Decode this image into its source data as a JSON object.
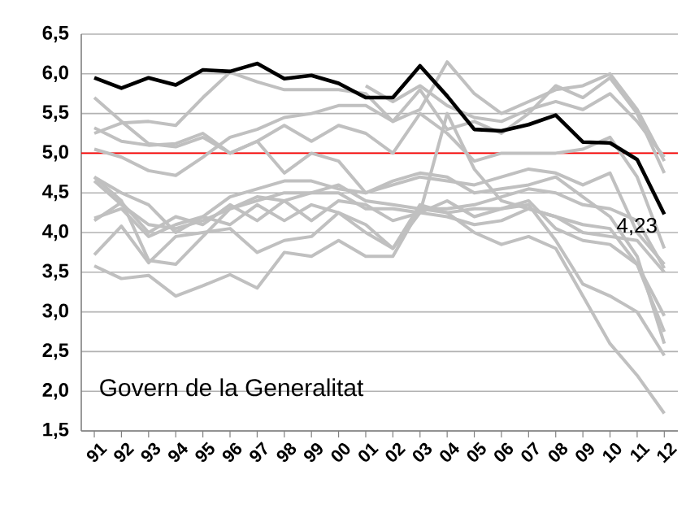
{
  "chart_data": {
    "type": "line",
    "categories": [
      "91",
      "92",
      "93",
      "94",
      "95",
      "96",
      "97",
      "98",
      "99",
      "00",
      "01",
      "02",
      "03",
      "04",
      "05",
      "06",
      "07",
      "08",
      "09",
      "10",
      "11",
      "12"
    ],
    "series": [
      {
        "color": "#c0c0c0",
        "values": [
          5.7,
          5.4,
          5.12,
          5.08,
          5.2,
          5.0,
          5.15,
          4.75,
          5.0,
          4.9,
          4.5,
          4.65,
          4.75,
          4.7,
          4.5,
          4.55,
          4.6,
          4.7,
          4.45,
          4.2,
          3.7,
          2.6
        ]
      },
      {
        "color": "#c0c0c0",
        "values": [
          5.32,
          5.15,
          5.1,
          5.12,
          5.25,
          5.0,
          5.15,
          5.35,
          5.15,
          5.35,
          5.25,
          5.0,
          5.5,
          5.25,
          4.9,
          5.0,
          5.0,
          5.0,
          5.05,
          5.2,
          4.7,
          3.8
        ]
      },
      {
        "color": "#c0c0c0",
        "values": [
          5.25,
          5.38,
          5.4,
          5.35,
          5.7,
          6.02,
          5.9,
          5.8,
          5.8,
          5.8,
          5.75,
          5.4,
          5.8,
          5.3,
          5.4,
          5.25,
          5.5,
          5.85,
          5.7,
          5.95,
          5.5,
          4.75
        ]
      },
      {
        "color": "#c0c0c0",
        "values": [
          5.05,
          4.95,
          4.78,
          4.72,
          4.95,
          5.2,
          5.3,
          5.45,
          5.5,
          5.6,
          5.6,
          5.4,
          5.55,
          6.15,
          5.75,
          5.5,
          5.65,
          5.8,
          5.85,
          6.0,
          5.55,
          4.9
        ]
      },
      {
        "color": "#c0c0c0",
        "values": [
          4.7,
          4.5,
          4.35,
          4.0,
          4.2,
          4.45,
          4.55,
          4.65,
          4.65,
          4.55,
          4.5,
          4.6,
          4.7,
          4.65,
          4.6,
          4.7,
          4.8,
          4.75,
          4.6,
          4.75,
          4.0,
          3.6
        ]
      },
      {
        "color": "#c0c0c0",
        "values": [
          4.65,
          4.35,
          4.1,
          4.05,
          4.15,
          4.3,
          4.4,
          4.5,
          4.5,
          4.6,
          4.4,
          4.35,
          4.3,
          4.3,
          4.35,
          4.45,
          4.55,
          4.5,
          4.35,
          4.3,
          4.15,
          3.55
        ]
      },
      {
        "color": "#c0c0c0",
        "values": [
          4.15,
          4.38,
          4.0,
          4.2,
          4.1,
          4.35,
          4.15,
          4.4,
          4.15,
          4.4,
          4.35,
          4.15,
          4.25,
          4.2,
          4.1,
          4.15,
          4.3,
          4.2,
          4.0,
          3.95,
          3.9,
          3.5
        ]
      },
      {
        "color": "#c0c0c0",
        "values": [
          4.18,
          4.3,
          3.95,
          4.1,
          4.2,
          4.1,
          4.35,
          4.15,
          4.35,
          4.25,
          4.1,
          3.8,
          4.35,
          4.25,
          4.3,
          4.3,
          4.4,
          4.05,
          3.9,
          3.85,
          3.6,
          2.95
        ]
      },
      {
        "color": "#c0c0c0",
        "values": [
          3.72,
          4.08,
          3.62,
          3.95,
          4.0,
          4.05,
          3.75,
          3.9,
          3.95,
          4.25,
          4.0,
          3.8,
          4.25,
          5.5,
          4.8,
          4.4,
          4.3,
          4.2,
          4.1,
          4.05,
          3.6,
          2.75
        ]
      },
      {
        "color": "#c0c0c0",
        "values": [
          3.58,
          3.42,
          3.46,
          3.2,
          3.33,
          3.47,
          3.3,
          3.75,
          3.7,
          3.9,
          3.7,
          3.7,
          4.3,
          4.25,
          4.0,
          3.85,
          3.95,
          3.8,
          3.2,
          2.6,
          2.2,
          1.72
        ]
      },
      {
        "color": "#c0c0c0",
        "values": [
          4.7,
          4.4,
          3.65,
          3.6,
          3.95,
          4.3,
          4.45,
          4.4,
          4.5,
          4.5,
          4.3,
          4.3,
          4.25,
          4.4,
          4.2,
          4.3,
          4.35,
          3.9,
          3.35,
          3.2,
          3.0,
          2.45
        ]
      },
      {
        "color": "#c0c0c0",
        "values": [
          null,
          null,
          null,
          null,
          null,
          null,
          null,
          null,
          null,
          null,
          5.85,
          5.65,
          5.85,
          5.6,
          5.45,
          5.4,
          5.55,
          5.65,
          5.55,
          5.75,
          5.4,
          4.95
        ]
      },
      {
        "color": "#000000",
        "values": [
          5.95,
          5.82,
          5.95,
          5.86,
          6.05,
          6.03,
          6.13,
          5.94,
          5.98,
          5.88,
          5.7,
          5.7,
          6.1,
          5.72,
          5.3,
          5.28,
          5.36,
          5.48,
          5.14,
          5.13,
          4.92,
          4.23
        ],
        "value_labels": [
          null,
          null,
          null,
          null,
          null,
          null,
          null,
          null,
          null,
          null,
          null,
          null,
          null,
          null,
          null,
          null,
          null,
          null,
          null,
          null,
          null,
          "4,23"
        ]
      }
    ],
    "ylim": [
      1.5,
      6.5
    ],
    "yticks": [
      {
        "value": 1.5,
        "label": "1,5"
      },
      {
        "value": 2.0,
        "label": "2,0"
      },
      {
        "value": 2.5,
        "label": "2,5"
      },
      {
        "value": 3.0,
        "label": "3,0"
      },
      {
        "value": 3.5,
        "label": "3,5"
      },
      {
        "value": 4.0,
        "label": "4,0"
      },
      {
        "value": 4.5,
        "label": "4,5"
      },
      {
        "value": 5.0,
        "label": "5,0"
      },
      {
        "value": 5.5,
        "label": "5,5"
      },
      {
        "value": 6.0,
        "label": "6,0"
      },
      {
        "value": 6.5,
        "label": "6,5"
      }
    ],
    "grid": "y",
    "ref_lines": [
      {
        "axis": "y",
        "value": 5.0,
        "color": "#ff0000"
      }
    ],
    "annotations": [
      "Govern de la Generalitat"
    ]
  }
}
